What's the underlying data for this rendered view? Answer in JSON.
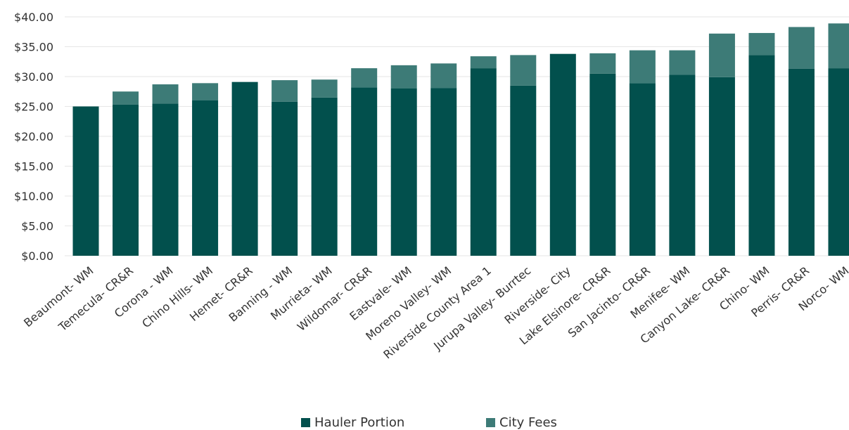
{
  "chart_data": {
    "type": "bar",
    "stacked": true,
    "categories": [
      "Beaumont- WM",
      "Temecula- CR&R",
      "Corona - WM",
      "Chino Hills- WM",
      "Hemet- CR&R",
      "Banning - WM",
      "Murrieta- WM",
      "Wildomar- CR&R",
      "Eastvale- WM",
      "Moreno Valley- WM",
      "Riverside County Area 1",
      "Jurupa Valley- Burrtec",
      "Riverside- City",
      "Lake Elsinore- CR&R",
      "San Jacinto- CR&R",
      "Menifee- WM",
      "Canyon Lake- CR&R",
      "Chino- WM",
      "Perris- CR&R",
      "Norco- WM"
    ],
    "series": [
      {
        "name": "Hauler Portion",
        "color": "#02504D",
        "values": [
          25.0,
          25.3,
          25.5,
          26.0,
          29.1,
          25.8,
          26.5,
          28.2,
          28.0,
          28.1,
          31.4,
          28.5,
          33.8,
          30.5,
          28.9,
          30.3,
          29.9,
          33.6,
          31.3,
          31.4
        ]
      },
      {
        "name": "City Fees",
        "color": "#3D7B77",
        "values": [
          0.0,
          2.2,
          3.2,
          2.9,
          0.0,
          3.6,
          3.0,
          3.2,
          3.9,
          4.1,
          2.0,
          5.1,
          0.0,
          3.4,
          5.5,
          4.1,
          7.3,
          3.7,
          7.0,
          7.5
        ]
      }
    ],
    "ylim": [
      0,
      40
    ],
    "yticks": [
      0,
      5,
      10,
      15,
      20,
      25,
      30,
      35,
      40
    ],
    "ytick_labels": [
      "$0.00",
      "$5.00",
      "$10.00",
      "$15.00",
      "$20.00",
      "$25.00",
      "$30.00",
      "$35.00",
      "$40.00"
    ],
    "grid": true,
    "legend_position": "bottom",
    "title": "",
    "xlabel": "",
    "ylabel": ""
  }
}
